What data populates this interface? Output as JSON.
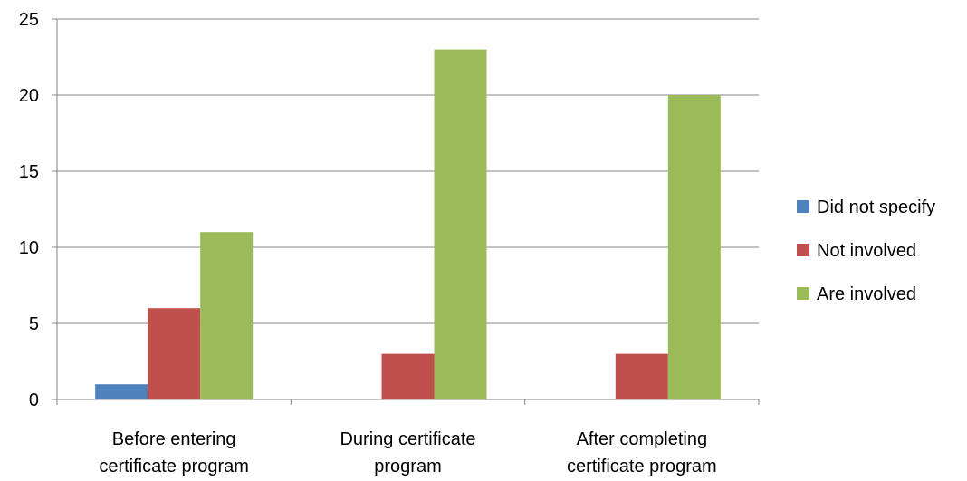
{
  "chart_data": {
    "type": "bar",
    "title": "",
    "xlabel": "",
    "ylabel": "",
    "ylim": [
      0,
      25
    ],
    "yticks": [
      0,
      5,
      10,
      15,
      20,
      25
    ],
    "grid": true,
    "legend_position": "right",
    "categories": [
      [
        "Before entering",
        "certificate program"
      ],
      [
        "During certificate",
        "program"
      ],
      [
        "After completing",
        "certificate program"
      ]
    ],
    "series": [
      {
        "name": "Did not specify",
        "color": "#4F81BD",
        "values": [
          1,
          0,
          0
        ]
      },
      {
        "name": "Not involved",
        "color": "#C0504D",
        "values": [
          6,
          3,
          3
        ]
      },
      {
        "name": "Are involved",
        "color": "#9BBB59",
        "values": [
          11,
          23,
          20
        ]
      }
    ]
  }
}
